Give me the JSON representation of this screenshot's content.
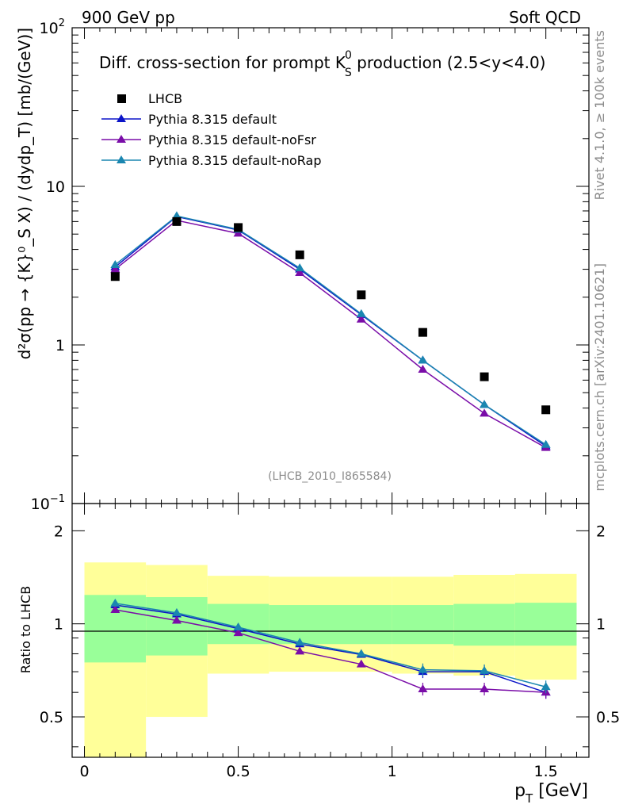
{
  "header": {
    "left": "900 GeV pp",
    "right": "Soft QCD"
  },
  "side_labels": {
    "top": "Rivet 4.1.0, ≥ 100k events",
    "bottom": "mcplots.cern.ch [arXiv:2401.10621]"
  },
  "main": {
    "title_main": "Diff. cross-section for prompt K",
    "title_sup": "0",
    "title_sub": "S",
    "title_tail": " production (2.5<y<4.0)",
    "ylabel": "d²σ(pp → {K}⁰_S X) / (dydp_T) [mb/(GeV)]",
    "watermark": "(LHCB_2010_I865584)",
    "y_ticks": [
      {
        "value": 0.1,
        "label_base": "10",
        "label_exp": "−1"
      },
      {
        "value": 1,
        "label_base": "1",
        "label_exp": ""
      },
      {
        "value": 10,
        "label_base": "10",
        "label_exp": ""
      },
      {
        "value": 100,
        "label_base": "10",
        "label_exp": "2"
      }
    ]
  },
  "ratio": {
    "ylabel": "Ratio to LHCB",
    "y_ticks": [
      "0.5",
      "1",
      "2"
    ],
    "x_ticks": [
      "0",
      "0.5",
      "1",
      "1.5"
    ],
    "xlabel_base": "p",
    "xlabel_sub": "T",
    "xlabel_tail": " [GeV]"
  },
  "colors": {
    "data": "#000000",
    "default": "#0b14c8",
    "noFsr": "#7a0da8",
    "noRap": "#1a86b0",
    "band_inner": "#99ff99",
    "band_outer": "#ffff99"
  },
  "chart_data": {
    "type": "scatter",
    "xscale": "linear",
    "yscale": "log",
    "xlim": [
      -0.04,
      1.64
    ],
    "ylim": [
      0.1,
      100
    ],
    "ratio_ylim": [
      0.37,
      2.45
    ],
    "bins": [
      {
        "lo": 0.0,
        "hi": 0.2
      },
      {
        "lo": 0.2,
        "hi": 0.4
      },
      {
        "lo": 0.4,
        "hi": 0.6
      },
      {
        "lo": 0.6,
        "hi": 0.8
      },
      {
        "lo": 0.8,
        "hi": 1.0
      },
      {
        "lo": 1.0,
        "hi": 1.2
      },
      {
        "lo": 1.2,
        "hi": 1.4
      },
      {
        "lo": 1.4,
        "hi": 1.6
      }
    ],
    "x": [
      0.1,
      0.3,
      0.5,
      0.7,
      0.9,
      1.1,
      1.3,
      1.5
    ],
    "data": {
      "name": "LHCB",
      "values": [
        2.7,
        6.0,
        5.5,
        3.7,
        2.07,
        1.2,
        0.63,
        0.39
      ],
      "stat_band": [
        [
          0.75,
          1.24
        ],
        [
          0.79,
          1.22
        ],
        [
          0.86,
          1.16
        ],
        [
          0.86,
          1.15
        ],
        [
          0.86,
          1.15
        ],
        [
          0.86,
          1.15
        ],
        [
          0.85,
          1.16
        ],
        [
          0.85,
          1.17
        ]
      ],
      "total_band": [
        [
          0.37,
          1.58
        ],
        [
          0.5,
          1.55
        ],
        [
          0.69,
          1.43
        ],
        [
          0.7,
          1.42
        ],
        [
          0.7,
          1.42
        ],
        [
          0.69,
          1.42
        ],
        [
          0.68,
          1.44
        ],
        [
          0.66,
          1.45
        ]
      ]
    },
    "series": [
      {
        "name": "Pythia 8.315 default",
        "color_key": "default",
        "values": [
          3.1,
          6.45,
          5.3,
          3.0,
          1.55,
          0.8,
          0.42,
          0.23
        ],
        "ratio": [
          1.15,
          1.075,
          0.965,
          0.86,
          0.795,
          0.7,
          0.7,
          0.6
        ]
      },
      {
        "name": "Pythia 8.315 default-noFsr",
        "color_key": "noFsr",
        "values": [
          3.0,
          6.1,
          5.05,
          2.85,
          1.45,
          0.7,
          0.37,
          0.225
        ],
        "ratio": [
          1.11,
          1.025,
          0.935,
          0.815,
          0.74,
          0.615,
          0.615,
          0.6
        ]
      },
      {
        "name": "Pythia 8.315 default-noRap",
        "color_key": "noRap",
        "values": [
          3.2,
          6.5,
          5.35,
          3.05,
          1.57,
          0.8,
          0.42,
          0.235
        ],
        "ratio": [
          1.165,
          1.085,
          0.975,
          0.87,
          0.8,
          0.71,
          0.705,
          0.625
        ]
      }
    ],
    "legend": [
      "LHCB",
      "Pythia 8.315 default",
      "Pythia 8.315 default-noFsr",
      "Pythia 8.315 default-noRap"
    ]
  }
}
